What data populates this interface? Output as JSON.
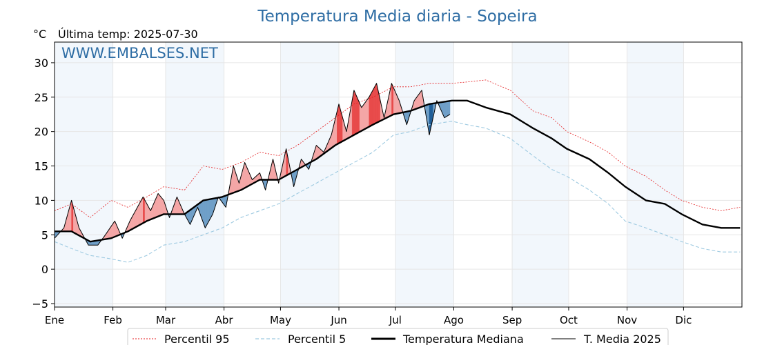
{
  "chart_data": {
    "type": "line",
    "title": "Temperatura Media diaria - Sopeira",
    "unit_label": "°C",
    "last_temp_label": "Última temp: 2025-07-30",
    "watermark": "WWW.EMBALSES.NET",
    "ylim": [
      -5.5,
      33
    ],
    "yticks": [
      -5,
      0,
      5,
      10,
      15,
      20,
      25,
      30
    ],
    "ytick_labels": [
      "−5",
      "0",
      "5",
      "10",
      "15",
      "20",
      "25",
      "30"
    ],
    "months": [
      "Ene",
      "Feb",
      "Mar",
      "Abr",
      "May",
      "Jun",
      "Jul",
      "Ago",
      "Sep",
      "Oct",
      "Nov",
      "Dic"
    ],
    "legend": [
      "Percentil 95",
      "Percentil 5",
      "Temperatura Mediana",
      "T. Media 2025"
    ],
    "colors": {
      "p95": "#e41a1c",
      "p5": "#9ecae1",
      "median": "#000000",
      "current": "#000000",
      "fill_above": "#f4a6a6",
      "fill_above_extreme": "#e84a4a",
      "fill_below": "#6f9fc8",
      "fill_below_extreme": "#1f5f99",
      "band": "#f2f7fc",
      "title": "#2e6da4"
    },
    "series": [
      {
        "name": "Percentil 95",
        "x": [
          1,
          10,
          20,
          31,
          40,
          50,
          59,
          70,
          80,
          90,
          100,
          110,
          120,
          130,
          140,
          150,
          160,
          170,
          181,
          190,
          200,
          212,
          220,
          230,
          243,
          255,
          265,
          273,
          285,
          295,
          304,
          315,
          325,
          334,
          345,
          355,
          365
        ],
        "values": [
          8.5,
          9.5,
          7.5,
          10.0,
          9.0,
          10.5,
          12.0,
          11.5,
          15.0,
          14.5,
          15.5,
          17.0,
          16.5,
          18.0,
          20.0,
          22.0,
          24.0,
          25.0,
          26.5,
          26.5,
          27.0,
          27.0,
          27.2,
          27.5,
          26.0,
          23.0,
          22.0,
          20.0,
          18.5,
          17.0,
          15.0,
          13.5,
          11.5,
          10.0,
          9.0,
          8.5,
          9.0
        ]
      },
      {
        "name": "Percentil 5",
        "x": [
          1,
          10,
          20,
          31,
          40,
          50,
          59,
          70,
          80,
          90,
          100,
          110,
          120,
          130,
          140,
          150,
          160,
          170,
          181,
          190,
          200,
          212,
          220,
          230,
          243,
          255,
          265,
          273,
          285,
          295,
          304,
          315,
          325,
          334,
          345,
          355,
          365
        ],
        "values": [
          4.0,
          3.0,
          2.0,
          1.5,
          1.0,
          2.0,
          3.5,
          4.0,
          5.0,
          6.0,
          7.5,
          8.5,
          9.5,
          11.0,
          12.5,
          14.0,
          15.5,
          17.0,
          19.5,
          20.0,
          21.0,
          21.5,
          21.0,
          20.5,
          19.0,
          16.5,
          14.5,
          13.5,
          11.5,
          9.5,
          7.0,
          6.0,
          5.0,
          4.0,
          3.0,
          2.5,
          2.5
        ]
      },
      {
        "name": "Temperatura Mediana",
        "x": [
          1,
          10,
          20,
          31,
          40,
          50,
          59,
          70,
          80,
          90,
          100,
          110,
          120,
          130,
          140,
          150,
          160,
          170,
          181,
          190,
          200,
          212,
          220,
          230,
          243,
          255,
          265,
          273,
          285,
          295,
          304,
          315,
          325,
          334,
          345,
          355,
          365
        ],
        "values": [
          5.5,
          5.5,
          4.0,
          4.5,
          5.5,
          7.0,
          8.0,
          8.0,
          10.0,
          10.5,
          11.5,
          13.0,
          13.0,
          14.5,
          16.0,
          18.0,
          19.5,
          21.0,
          22.5,
          23.0,
          24.0,
          24.5,
          24.5,
          23.5,
          22.5,
          20.5,
          19.0,
          17.5,
          16.0,
          14.0,
          12.0,
          10.0,
          9.5,
          8.0,
          6.5,
          6.0,
          6.0
        ]
      },
      {
        "name": "T. Media 2025",
        "x": [
          1,
          6,
          10,
          14,
          19,
          24,
          28,
          33,
          37,
          41,
          45,
          48,
          52,
          56,
          59,
          62,
          66,
          70,
          73,
          77,
          81,
          85,
          88,
          92,
          96,
          99,
          102,
          106,
          110,
          113,
          117,
          120,
          124,
          128,
          132,
          136,
          140,
          144,
          148,
          152,
          156,
          160,
          164,
          168,
          172,
          176,
          180,
          184,
          188,
          192,
          196,
          200,
          204,
          208,
          211
        ],
        "values": [
          4.5,
          6.0,
          10.0,
          6.0,
          3.5,
          3.5,
          5.0,
          7.0,
          4.5,
          7.0,
          9.0,
          10.5,
          8.5,
          11.0,
          10.0,
          7.5,
          10.5,
          8.0,
          6.5,
          9.0,
          6.0,
          8.0,
          10.5,
          9.0,
          15.0,
          12.5,
          15.5,
          13.0,
          14.0,
          11.5,
          16.0,
          12.5,
          17.5,
          12.0,
          16.0,
          14.5,
          18.0,
          17.0,
          19.5,
          24.0,
          20.0,
          26.0,
          23.5,
          25.0,
          27.0,
          22.0,
          27.0,
          24.5,
          21.0,
          24.5,
          26.0,
          19.5,
          24.5,
          22.0,
          22.5
        ]
      }
    ]
  }
}
